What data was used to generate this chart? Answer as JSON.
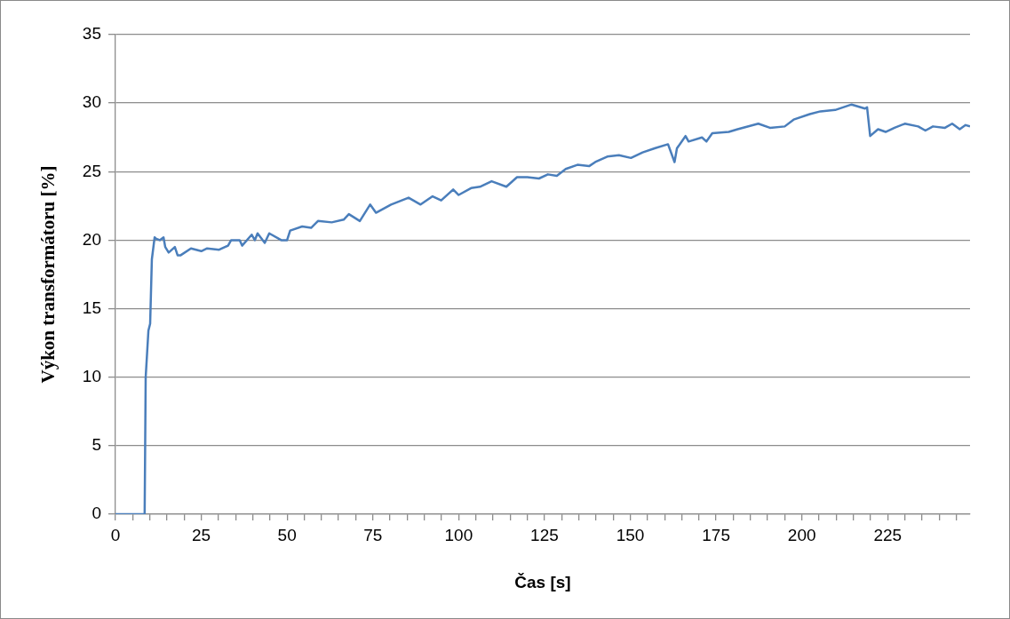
{
  "chart_data": {
    "type": "line",
    "xlabel": "Čas [s]",
    "ylabel": "Výkon transformátoru [%]",
    "xlim": [
      0,
      249
    ],
    "ylim": [
      0,
      35
    ],
    "yticks": [
      0,
      5,
      10,
      15,
      20,
      25,
      30,
      35
    ],
    "xticks": [
      0,
      {
        "value": 5,
        "label": null
      },
      {
        "value": 10,
        "label": null
      },
      {
        "value": 15,
        "label": null
      },
      {
        "value": 20,
        "label": null
      },
      25,
      {
        "value": 30,
        "label": null
      },
      {
        "value": 35,
        "label": null
      },
      {
        "value": 40,
        "label": null
      },
      {
        "value": 45,
        "label": null
      },
      50,
      {
        "value": 55,
        "label": null
      },
      {
        "value": 60,
        "label": null
      },
      {
        "value": 65,
        "label": null
      },
      {
        "value": 70,
        "label": null
      },
      75,
      {
        "value": 80,
        "label": null
      },
      {
        "value": 85,
        "label": null
      },
      {
        "value": 90,
        "label": null
      },
      {
        "value": 95,
        "label": null
      },
      100,
      {
        "value": 105,
        "label": null
      },
      {
        "value": 110,
        "label": null
      },
      {
        "value": 115,
        "label": null
      },
      {
        "value": 120,
        "label": null
      },
      125,
      {
        "value": 130,
        "label": null
      },
      {
        "value": 135,
        "label": null
      },
      {
        "value": 140,
        "label": null
      },
      {
        "value": 145,
        "label": null
      },
      150,
      {
        "value": 155,
        "label": null
      },
      {
        "value": 160,
        "label": null
      },
      {
        "value": 165,
        "label": null
      },
      {
        "value": 170,
        "label": null
      },
      175,
      {
        "value": 180,
        "label": null
      },
      {
        "value": 185,
        "label": null
      },
      {
        "value": 190,
        "label": null
      },
      {
        "value": 195,
        "label": null
      },
      200,
      {
        "value": 205,
        "label": null
      },
      {
        "value": 210,
        "label": null
      },
      {
        "value": 215,
        "label": null
      },
      {
        "value": 220,
        "label": null
      },
      225,
      {
        "value": 230,
        "label": null
      },
      {
        "value": 235,
        "label": null
      },
      {
        "value": 240,
        "label": null
      },
      {
        "value": 245,
        "label": null
      }
    ],
    "grid": "y",
    "legend": false,
    "marker": "none",
    "line_style": "solid",
    "series": [
      {
        "color": "#4a7ebb",
        "x": [
          0,
          8.5,
          8.8,
          9.6,
          10.1,
          10.6,
          11.4,
          11.9,
          12.9,
          14,
          14.5,
          15.5,
          17.3,
          18.1,
          19,
          22,
          25,
          26.7,
          30.2,
          32.8,
          33.7,
          36.2,
          36.9,
          39.7,
          40.6,
          41.4,
          43.5,
          44.8,
          48.3,
          50,
          50.9,
          54.4,
          57,
          59,
          63,
          66.5,
          68,
          71.2,
          74.2,
          75.9,
          80.3,
          85.4,
          88.9,
          92.4,
          94.9,
          98.4,
          100,
          103.6,
          106.2,
          109.6,
          113.9,
          117,
          120,
          123.4,
          126,
          128.6,
          131.2,
          134.6,
          138,
          139.8,
          143.3,
          146.7,
          150.2,
          153.6,
          157.1,
          161,
          162.9,
          163.6,
          166.1,
          167,
          170.9,
          172.2,
          173.9,
          178.7,
          181.3,
          187.3,
          190.7,
          195,
          197.6,
          202.3,
          205.4,
          209.7,
          214.5,
          218.4,
          219,
          219.9,
          222.2,
          224.4,
          227,
          230,
          233.9,
          236,
          238.2,
          241.7,
          243.8,
          246,
          247.7,
          249
        ],
        "values": [
          0,
          0,
          10,
          13.4,
          13.9,
          18.6,
          20.2,
          20.1,
          20,
          20.2,
          19.5,
          19.1,
          19.5,
          18.9,
          18.9,
          19.4,
          19.2,
          19.4,
          19.3,
          19.6,
          20,
          20,
          19.6,
          20.4,
          20,
          20.5,
          19.8,
          20.5,
          20,
          20,
          20.7,
          21,
          20.9,
          21.4,
          21.3,
          21.5,
          21.9,
          21.4,
          22.6,
          22,
          22.6,
          23.1,
          22.6,
          23.2,
          22.9,
          23.7,
          23.3,
          23.8,
          23.9,
          24.3,
          23.9,
          24.6,
          24.6,
          24.5,
          24.8,
          24.7,
          25.2,
          25.5,
          25.4,
          25.7,
          26.1,
          26.2,
          26,
          26.4,
          26.7,
          27,
          25.7,
          26.7,
          27.6,
          27.2,
          27.5,
          27.2,
          27.8,
          27.9,
          28.1,
          28.5,
          28.2,
          28.3,
          28.8,
          29.2,
          29.4,
          29.5,
          29.9,
          29.6,
          29.7,
          27.6,
          28.1,
          27.9,
          28.2,
          28.5,
          28.3,
          28,
          28.3,
          28.2,
          28.5,
          28.1,
          28.4,
          28.3
        ]
      }
    ]
  }
}
